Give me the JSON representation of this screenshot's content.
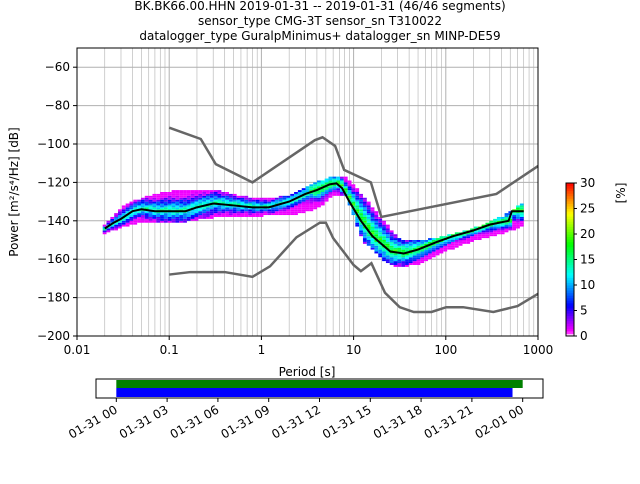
{
  "title": {
    "line1": "BK.BK66.00.HHN   2019-01-31 -- 2019-01-31  (46/46 segments)",
    "line2": "sensor_type CMG-3T sensor_sn T310022",
    "line3": "datalogger_type GuralpMinimus+ datalogger_sn MINP-DE59"
  },
  "chart_data": {
    "type": "heatmap",
    "xlabel": "Period [s]",
    "ylabel": "Power [m²/s⁴/Hz] [dB]",
    "xscale": "log",
    "xlim": [
      0.01,
      1000
    ],
    "ylim": [
      -200,
      -50
    ],
    "xticks": [
      "0.01",
      "0.1",
      "1",
      "10",
      "100",
      "1000"
    ],
    "xtick_values": [
      0.01,
      0.1,
      1,
      10,
      100,
      1000
    ],
    "yticks": [
      "−60",
      "−80",
      "−100",
      "−120",
      "−140",
      "−160",
      "−180",
      "−200"
    ],
    "ytick_values": [
      -60,
      -80,
      -100,
      -120,
      -140,
      -160,
      -180,
      -200
    ],
    "grid": true,
    "colorbar": {
      "label": "[%]",
      "min": 0,
      "max": 30,
      "ticks": [
        "0",
        "5",
        "10",
        "15",
        "20",
        "25",
        "30"
      ],
      "tick_values": [
        0,
        5,
        10,
        15,
        20,
        25,
        30
      ]
    },
    "mean_line": {
      "period": [
        0.02,
        0.025,
        0.03,
        0.04,
        0.05,
        0.07,
        0.1,
        0.15,
        0.2,
        0.3,
        0.5,
        0.8,
        1.2,
        2,
        3,
        4,
        5.5,
        6.5,
        7.5,
        9,
        12,
        16,
        25,
        35,
        50,
        80,
        120,
        200,
        300,
        480,
        520,
        700
      ],
      "db": [
        -144,
        -141,
        -139,
        -135,
        -134,
        -135,
        -135,
        -135,
        -133,
        -131,
        -132,
        -133,
        -133,
        -130,
        -126,
        -124,
        -121,
        -120.5,
        -123,
        -130,
        -140,
        -148,
        -156,
        -157,
        -155,
        -151,
        -148,
        -145,
        -142,
        -140,
        -135,
        -135
      ]
    },
    "density_band": {
      "period": [
        0.02,
        0.03,
        0.05,
        0.1,
        0.2,
        0.3,
        0.5,
        1,
        2,
        4,
        6,
        8,
        12,
        20,
        30,
        50,
        100,
        200,
        400,
        700
      ],
      "low": [
        -146,
        -143,
        -140,
        -141,
        -139,
        -138,
        -138,
        -137,
        -137,
        -133,
        -126,
        -127,
        -150,
        -160,
        -164,
        -162,
        -155,
        -150,
        -146,
        -142
      ],
      "high": [
        -141,
        -133,
        -128,
        -125,
        -124,
        -124,
        -127,
        -129,
        -127,
        -120,
        -117,
        -118,
        -127,
        -140,
        -150,
        -151,
        -148,
        -144,
        -138,
        -130
      ]
    },
    "nhnm": {
      "period": [
        0.1,
        0.22,
        0.32,
        0.8,
        3.8,
        4.6,
        6.3,
        7.9,
        15.4,
        20,
        354,
        1000
      ],
      "db": [
        -91.5,
        -97.4,
        -110.5,
        -120,
        -98,
        -96.5,
        -101,
        -113.5,
        -120,
        -138,
        -126,
        -111.5
      ]
    },
    "nlnm": {
      "period": [
        0.1,
        0.17,
        0.4,
        0.8,
        1.24,
        2.4,
        4.3,
        5,
        6,
        10,
        12,
        15.6,
        21.9,
        31.6,
        45,
        70,
        101,
        154,
        328,
        600,
        1000
      ],
      "db": [
        -168,
        -166.7,
        -166.7,
        -169.2,
        -163.7,
        -148.6,
        -141,
        -141,
        -149,
        -163,
        -166.2,
        -162.1,
        -177.5,
        -185,
        -187.5,
        -187.5,
        -185,
        -185,
        -187.5,
        -184.4,
        -178
      ]
    }
  },
  "timeline": {
    "ticks": [
      "01-31 00",
      "01-31 03",
      "01-31 06",
      "01-31 09",
      "01-31 12",
      "01-31 15",
      "01-31 18",
      "01-31 21",
      "02-01 00"
    ],
    "tick_hours": [
      0,
      3,
      6,
      9,
      12,
      15,
      18,
      21,
      24
    ],
    "xlim_hours": [
      -1.2,
      25.2
    ],
    "green_bar_hours": [
      0,
      24
    ],
    "blue_bar_hours": [
      0,
      23.4
    ],
    "colors": {
      "green": "#008000",
      "blue": "#0000ff"
    }
  }
}
